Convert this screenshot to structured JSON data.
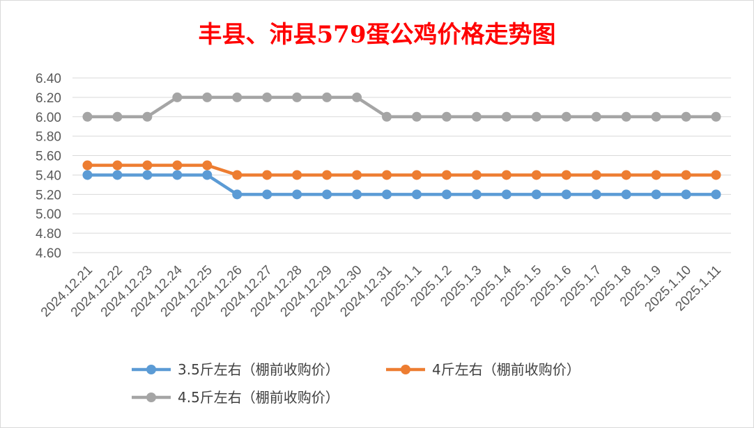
{
  "chart_data": {
    "type": "line",
    "title": "丰县、沛县579蛋公鸡价格走势图",
    "xlabel": "",
    "ylabel": "",
    "ylim": [
      4.6,
      6.4
    ],
    "y_ticks": [
      "6.40",
      "6.20",
      "6.00",
      "5.80",
      "5.60",
      "5.40",
      "5.20",
      "5.00",
      "4.80",
      "4.60"
    ],
    "grid": true,
    "legend_position": "bottom",
    "categories": [
      "2024.12.21",
      "2024.12.22",
      "2024.12.23",
      "2024.12.24",
      "2024.12.25",
      "2024.12.26",
      "2024.12.27",
      "2024.12.28",
      "2024.12.29",
      "2024.12.30",
      "2024.12.31",
      "2025.1.1",
      "2025.1.2",
      "2025.1.3",
      "2025.1.4",
      "2025.1.5",
      "2025.1.6",
      "2025.1.7",
      "2025.1.8",
      "2025.1.9",
      "2025.1.10",
      "2025.1.11"
    ],
    "series": [
      {
        "name": "3.5斤左右（棚前收购价）",
        "color": "#5b9bd5",
        "values": [
          5.4,
          5.4,
          5.4,
          5.4,
          5.4,
          5.2,
          5.2,
          5.2,
          5.2,
          5.2,
          5.2,
          5.2,
          5.2,
          5.2,
          5.2,
          5.2,
          5.2,
          5.2,
          5.2,
          5.2,
          5.2,
          5.2
        ]
      },
      {
        "name": "4斤左右（棚前收购价）",
        "color": "#ed7d31",
        "values": [
          5.5,
          5.5,
          5.5,
          5.5,
          5.5,
          5.4,
          5.4,
          5.4,
          5.4,
          5.4,
          5.4,
          5.4,
          5.4,
          5.4,
          5.4,
          5.4,
          5.4,
          5.4,
          5.4,
          5.4,
          5.4,
          5.4
        ]
      },
      {
        "name": "4.5斤左右（棚前收购价）",
        "color": "#a5a5a5",
        "values": [
          6.0,
          6.0,
          6.0,
          6.2,
          6.2,
          6.2,
          6.2,
          6.2,
          6.2,
          6.2,
          6.0,
          6.0,
          6.0,
          6.0,
          6.0,
          6.0,
          6.0,
          6.0,
          6.0,
          6.0,
          6.0,
          6.0
        ]
      }
    ]
  }
}
